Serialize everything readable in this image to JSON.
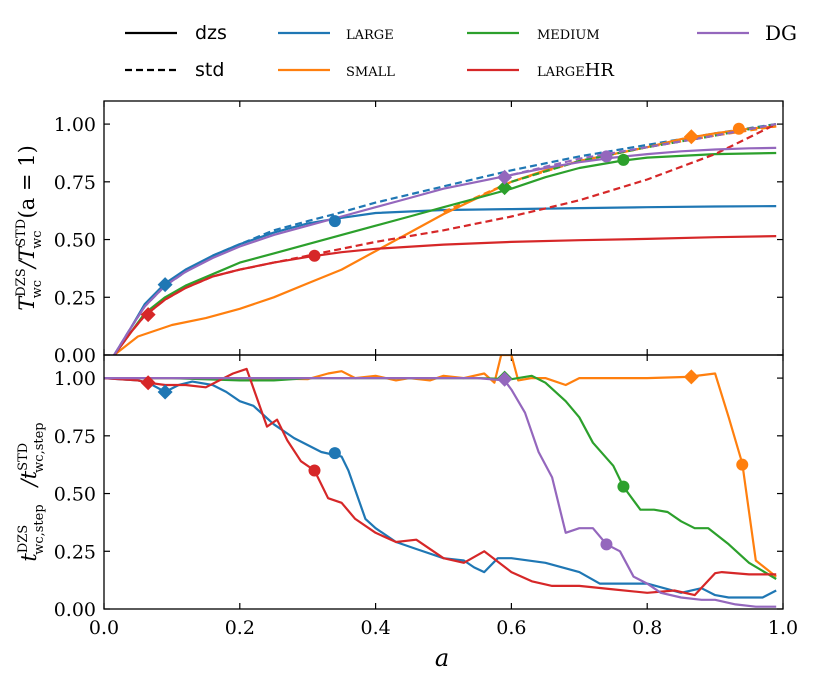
{
  "chart_data": {
    "type": "line",
    "colors": {
      "LARGE": "#1f77b4",
      "SMALL": "#ff7f0e",
      "MEDIUM": "#2ca02c",
      "LARGEHR": "#d62728",
      "DG": "#9467bd"
    },
    "legend": {
      "placement": "top",
      "linestyles": [
        {
          "label": "dzs",
          "style": "solid"
        },
        {
          "label": "std",
          "style": "dashed"
        }
      ],
      "series": [
        "LARGE",
        "SMALL",
        "MEDIUM",
        "LARGEHR",
        "DG"
      ],
      "display_labels": [
        "large",
        "small",
        "medium",
        "largeHR",
        "DG"
      ]
    },
    "xlabel": "a",
    "xlim": [
      0.0,
      1.0
    ],
    "xticks": [
      "0.0",
      "0.2",
      "0.4",
      "0.6",
      "0.8",
      "1.0"
    ],
    "panels": [
      {
        "name": "top",
        "ylabel": "T_wc^DZS / T_wc^STD (a = 1)",
        "ylabel_parts": {
          "main": "T",
          "sup": "DZS",
          "sub": "wc",
          "div": "/T",
          "sup2": "STD",
          "sub2": "wc",
          "tail": "(a = 1)"
        },
        "ylim": [
          0.0,
          1.1
        ],
        "yticks": [
          "0.00",
          "0.25",
          "0.50",
          "0.75",
          "1.00"
        ],
        "series": [
          {
            "name": "LARGE",
            "style": "solid",
            "x": [
              0.015,
              0.04,
              0.06,
              0.09,
              0.12,
              0.16,
              0.2,
              0.25,
              0.3,
              0.34,
              0.4,
              0.5,
              0.6,
              0.7,
              0.8,
              0.9,
              0.99
            ],
            "y": [
              0.0,
              0.12,
              0.22,
              0.31,
              0.37,
              0.43,
              0.48,
              0.53,
              0.57,
              0.59,
              0.615,
              0.628,
              0.632,
              0.636,
              0.64,
              0.643,
              0.645
            ]
          },
          {
            "name": "LARGE",
            "style": "dashed",
            "x": [
              0.015,
              0.04,
              0.06,
              0.09,
              0.12,
              0.16,
              0.2,
              0.25,
              0.3,
              0.34,
              0.4,
              0.5,
              0.6,
              0.7,
              0.8,
              0.9,
              0.99
            ],
            "y": [
              0.0,
              0.12,
              0.21,
              0.3,
              0.36,
              0.43,
              0.48,
              0.54,
              0.58,
              0.61,
              0.66,
              0.73,
              0.8,
              0.86,
              0.91,
              0.96,
              1.0
            ]
          },
          {
            "name": "SMALL",
            "style": "solid",
            "x": [
              0.015,
              0.05,
              0.1,
              0.15,
              0.2,
              0.25,
              0.3,
              0.35,
              0.4,
              0.45,
              0.5,
              0.55,
              0.6,
              0.65,
              0.7,
              0.75,
              0.8,
              0.85,
              0.9,
              0.95,
              0.99
            ],
            "y": [
              0.0,
              0.08,
              0.13,
              0.16,
              0.2,
              0.25,
              0.31,
              0.37,
              0.45,
              0.53,
              0.61,
              0.68,
              0.75,
              0.8,
              0.84,
              0.87,
              0.9,
              0.935,
              0.96,
              0.98,
              0.99
            ]
          },
          {
            "name": "SMALL",
            "style": "dashed",
            "x": [
              0.5,
              0.6,
              0.7,
              0.8,
              0.9,
              0.99
            ],
            "y": [
              0.62,
              0.75,
              0.84,
              0.9,
              0.95,
              0.99
            ]
          },
          {
            "name": "MEDIUM",
            "style": "solid",
            "x": [
              0.015,
              0.04,
              0.06,
              0.09,
              0.12,
              0.16,
              0.2,
              0.25,
              0.3,
              0.35,
              0.4,
              0.45,
              0.5,
              0.55,
              0.6,
              0.65,
              0.7,
              0.76,
              0.8,
              0.9,
              0.99
            ],
            "y": [
              0.0,
              0.1,
              0.18,
              0.25,
              0.3,
              0.35,
              0.4,
              0.44,
              0.48,
              0.52,
              0.56,
              0.6,
              0.64,
              0.68,
              0.72,
              0.77,
              0.81,
              0.84,
              0.855,
              0.87,
              0.875
            ]
          },
          {
            "name": "MEDIUM",
            "style": "dashed",
            "x": [
              0.6,
              0.7,
              0.8,
              0.9,
              0.99
            ],
            "y": [
              0.75,
              0.84,
              0.9,
              0.95,
              1.0
            ]
          },
          {
            "name": "LARGEHR",
            "style": "solid",
            "x": [
              0.015,
              0.04,
              0.06,
              0.09,
              0.12,
              0.16,
              0.2,
              0.25,
              0.3,
              0.35,
              0.4,
              0.5,
              0.6,
              0.7,
              0.8,
              0.9,
              0.99
            ],
            "y": [
              0.0,
              0.1,
              0.17,
              0.24,
              0.29,
              0.34,
              0.37,
              0.4,
              0.425,
              0.445,
              0.46,
              0.478,
              0.49,
              0.497,
              0.503,
              0.51,
              0.515
            ]
          },
          {
            "name": "LARGEHR",
            "style": "dashed",
            "x": [
              0.015,
              0.04,
              0.06,
              0.09,
              0.12,
              0.16,
              0.2,
              0.25,
              0.3,
              0.35,
              0.4,
              0.5,
              0.6,
              0.7,
              0.8,
              0.9,
              0.99
            ],
            "y": [
              0.0,
              0.1,
              0.17,
              0.24,
              0.29,
              0.34,
              0.37,
              0.4,
              0.43,
              0.46,
              0.49,
              0.54,
              0.6,
              0.67,
              0.76,
              0.87,
              1.0
            ]
          },
          {
            "name": "DG",
            "style": "solid",
            "x": [
              0.015,
              0.04,
              0.06,
              0.09,
              0.12,
              0.16,
              0.2,
              0.25,
              0.3,
              0.35,
              0.4,
              0.45,
              0.5,
              0.55,
              0.6,
              0.65,
              0.7,
              0.75,
              0.8,
              0.85,
              0.9,
              0.95,
              0.99
            ],
            "y": [
              0.0,
              0.12,
              0.21,
              0.3,
              0.36,
              0.42,
              0.47,
              0.52,
              0.56,
              0.6,
              0.64,
              0.68,
              0.72,
              0.75,
              0.78,
              0.81,
              0.835,
              0.855,
              0.87,
              0.882,
              0.89,
              0.895,
              0.897
            ]
          },
          {
            "name": "DG",
            "style": "dashed",
            "x": [
              0.6,
              0.7,
              0.8,
              0.9,
              0.99
            ],
            "y": [
              0.78,
              0.85,
              0.9,
              0.95,
              1.0
            ]
          }
        ],
        "markers": [
          {
            "series": "LARGE",
            "shape": "diamond",
            "x": 0.09,
            "y": 0.305
          },
          {
            "series": "LARGE",
            "shape": "circle",
            "x": 0.34,
            "y": 0.58
          },
          {
            "series": "SMALL",
            "shape": "diamond",
            "x": 0.865,
            "y": 0.945
          },
          {
            "series": "SMALL",
            "shape": "circle",
            "x": 0.935,
            "y": 0.98
          },
          {
            "series": "MEDIUM",
            "shape": "diamond",
            "x": 0.59,
            "y": 0.725
          },
          {
            "series": "MEDIUM",
            "shape": "circle",
            "x": 0.765,
            "y": 0.845
          },
          {
            "series": "LARGEHR",
            "shape": "diamond",
            "x": 0.065,
            "y": 0.175
          },
          {
            "series": "LARGEHR",
            "shape": "circle",
            "x": 0.31,
            "y": 0.43
          },
          {
            "series": "DG",
            "shape": "diamond",
            "x": 0.59,
            "y": 0.77
          },
          {
            "series": "DG",
            "shape": "circle",
            "x": 0.74,
            "y": 0.86
          }
        ]
      },
      {
        "name": "bottom",
        "ylabel": "t_wc,step^DZS / t_wc,step^STD",
        "ylabel_parts": {
          "main": "t",
          "sup": "DZS",
          "sub": "wc,step",
          "div": "/t",
          "sup2": "STD",
          "sub2": "wc,step",
          "tail": ""
        },
        "ylim": [
          0.0,
          1.1
        ],
        "yticks": [
          "0.00",
          "0.25",
          "0.50",
          "0.75",
          "1.00"
        ],
        "series": [
          {
            "name": "LARGE",
            "style": "solid",
            "x": [
              0.0,
              0.05,
              0.065,
              0.09,
              0.11,
              0.13,
              0.16,
              0.18,
              0.2,
              0.22,
              0.25,
              0.28,
              0.32,
              0.35,
              0.36,
              0.385,
              0.4,
              0.43,
              0.46,
              0.5,
              0.53,
              0.545,
              0.56,
              0.58,
              0.6,
              0.65,
              0.7,
              0.73,
              0.78,
              0.8,
              0.85,
              0.88,
              0.9,
              0.92,
              0.95,
              0.97,
              0.99
            ],
            "y": [
              1.0,
              0.99,
              0.98,
              0.94,
              0.97,
              0.985,
              0.97,
              0.94,
              0.9,
              0.88,
              0.8,
              0.74,
              0.68,
              0.66,
              0.6,
              0.39,
              0.35,
              0.29,
              0.26,
              0.22,
              0.21,
              0.18,
              0.16,
              0.22,
              0.22,
              0.2,
              0.16,
              0.11,
              0.11,
              0.11,
              0.07,
              0.09,
              0.06,
              0.05,
              0.05,
              0.05,
              0.08
            ]
          },
          {
            "name": "SMALL",
            "style": "solid",
            "x": [
              0.0,
              0.1,
              0.2,
              0.3,
              0.33,
              0.35,
              0.37,
              0.4,
              0.43,
              0.45,
              0.48,
              0.5,
              0.53,
              0.56,
              0.575,
              0.585,
              0.6,
              0.61,
              0.63,
              0.65,
              0.68,
              0.7,
              0.75,
              0.8,
              0.86,
              0.9,
              0.92,
              0.94,
              0.96,
              0.99
            ],
            "y": [
              1.0,
              1.0,
              1.0,
              0.995,
              1.02,
              1.03,
              1.0,
              1.01,
              0.99,
              1.0,
              0.99,
              1.01,
              1.0,
              1.02,
              0.98,
              1.1,
              1.1,
              0.99,
              1.0,
              1.0,
              0.97,
              1.0,
              1.0,
              1.0,
              1.005,
              1.02,
              0.83,
              0.63,
              0.21,
              0.14
            ]
          },
          {
            "name": "MEDIUM",
            "style": "solid",
            "x": [
              0.0,
              0.1,
              0.2,
              0.25,
              0.3,
              0.4,
              0.5,
              0.55,
              0.6,
              0.63,
              0.65,
              0.68,
              0.7,
              0.72,
              0.75,
              0.765,
              0.79,
              0.81,
              0.83,
              0.85,
              0.87,
              0.89,
              0.92,
              0.95,
              0.99
            ],
            "y": [
              1.0,
              1.0,
              0.99,
              0.99,
              1.0,
              1.0,
              1.0,
              1.0,
              0.995,
              1.01,
              0.98,
              0.9,
              0.83,
              0.72,
              0.62,
              0.53,
              0.43,
              0.43,
              0.42,
              0.38,
              0.35,
              0.35,
              0.28,
              0.2,
              0.13
            ]
          },
          {
            "name": "LARGEHR",
            "style": "solid",
            "x": [
              0.0,
              0.05,
              0.065,
              0.09,
              0.12,
              0.15,
              0.17,
              0.19,
              0.21,
              0.24,
              0.255,
              0.27,
              0.29,
              0.31,
              0.33,
              0.35,
              0.37,
              0.4,
              0.43,
              0.46,
              0.5,
              0.53,
              0.56,
              0.6,
              0.63,
              0.66,
              0.7,
              0.75,
              0.8,
              0.84,
              0.87,
              0.9,
              0.91,
              0.95,
              0.99
            ],
            "y": [
              1.0,
              0.99,
              0.98,
              0.97,
              0.97,
              0.96,
              0.99,
              1.02,
              1.04,
              0.79,
              0.82,
              0.73,
              0.64,
              0.6,
              0.48,
              0.46,
              0.39,
              0.33,
              0.29,
              0.3,
              0.22,
              0.2,
              0.25,
              0.16,
              0.12,
              0.1,
              0.1,
              0.085,
              0.07,
              0.08,
              0.06,
              0.155,
              0.16,
              0.15,
              0.15
            ]
          },
          {
            "name": "DG",
            "style": "solid",
            "x": [
              0.0,
              0.2,
              0.4,
              0.55,
              0.59,
              0.6,
              0.62,
              0.64,
              0.66,
              0.68,
              0.7,
              0.72,
              0.74,
              0.76,
              0.78,
              0.8,
              0.82,
              0.85,
              0.88,
              0.9,
              0.93,
              0.96,
              0.99
            ],
            "y": [
              1.0,
              1.0,
              1.0,
              1.0,
              0.99,
              0.95,
              0.85,
              0.68,
              0.57,
              0.33,
              0.35,
              0.35,
              0.28,
              0.25,
              0.14,
              0.11,
              0.07,
              0.05,
              0.04,
              0.04,
              0.02,
              0.01,
              0.01
            ]
          }
        ],
        "markers": [
          {
            "series": "LARGE",
            "shape": "diamond",
            "x": 0.09,
            "y": 0.94
          },
          {
            "series": "LARGE",
            "shape": "circle",
            "x": 0.34,
            "y": 0.675
          },
          {
            "series": "SMALL",
            "shape": "diamond",
            "x": 0.865,
            "y": 1.005
          },
          {
            "series": "SMALL",
            "shape": "circle",
            "x": 0.94,
            "y": 0.625
          },
          {
            "series": "MEDIUM",
            "shape": "diamond",
            "x": 0.59,
            "y": 1.0
          },
          {
            "series": "MEDIUM",
            "shape": "circle",
            "x": 0.765,
            "y": 0.53
          },
          {
            "series": "LARGEHR",
            "shape": "diamond",
            "x": 0.065,
            "y": 0.98
          },
          {
            "series": "LARGEHR",
            "shape": "circle",
            "x": 0.31,
            "y": 0.6
          },
          {
            "series": "DG",
            "shape": "diamond",
            "x": 0.59,
            "y": 0.995
          },
          {
            "series": "DG",
            "shape": "circle",
            "x": 0.74,
            "y": 0.28
          }
        ]
      }
    ]
  }
}
